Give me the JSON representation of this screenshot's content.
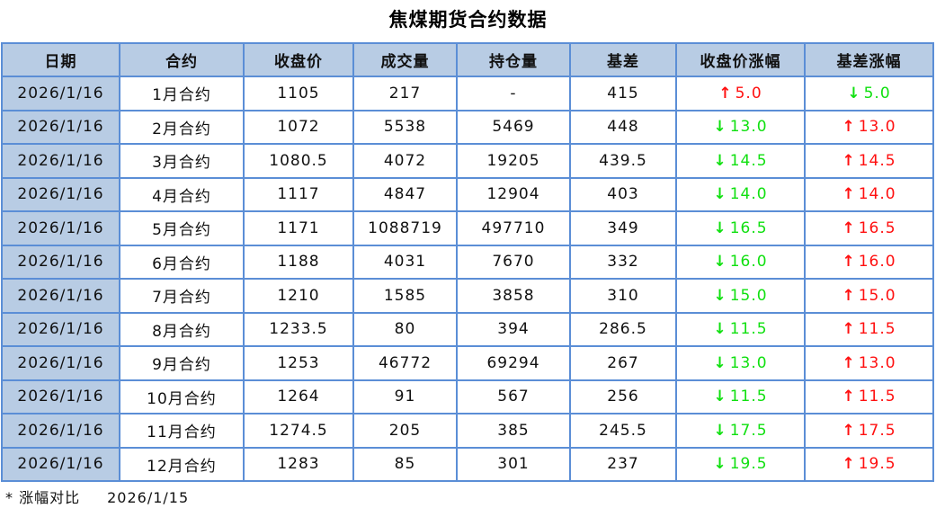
{
  "title": "焦煤期货合约数据",
  "colors": {
    "header_bg": "#b8cce4",
    "border": "#5b8ed6",
    "up": "#ff1010",
    "down": "#10e010"
  },
  "headers": [
    "日期",
    "合约",
    "收盘价",
    "成交量",
    "持仓量",
    "基差",
    "收盘价涨幅",
    "基差涨幅"
  ],
  "rows": [
    [
      "2026/1/16",
      "1月合约",
      "1105",
      "217",
      "-",
      "415",
      {
        "dir": "up",
        "v": "5.0"
      },
      {
        "dir": "down",
        "v": "5.0"
      }
    ],
    [
      "2026/1/16",
      "2月合约",
      "1072",
      "5538",
      "5469",
      "448",
      {
        "dir": "down",
        "v": "13.0"
      },
      {
        "dir": "up",
        "v": "13.0"
      }
    ],
    [
      "2026/1/16",
      "3月合约",
      "1080.5",
      "4072",
      "19205",
      "439.5",
      {
        "dir": "down",
        "v": "14.5"
      },
      {
        "dir": "up",
        "v": "14.5"
      }
    ],
    [
      "2026/1/16",
      "4月合约",
      "1117",
      "4847",
      "12904",
      "403",
      {
        "dir": "down",
        "v": "14.0"
      },
      {
        "dir": "up",
        "v": "14.0"
      }
    ],
    [
      "2026/1/16",
      "5月合约",
      "1171",
      "1088719",
      "497710",
      "349",
      {
        "dir": "down",
        "v": "16.5"
      },
      {
        "dir": "up",
        "v": "16.5"
      }
    ],
    [
      "2026/1/16",
      "6月合约",
      "1188",
      "4031",
      "7670",
      "332",
      {
        "dir": "down",
        "v": "16.0"
      },
      {
        "dir": "up",
        "v": "16.0"
      }
    ],
    [
      "2026/1/16",
      "7月合约",
      "1210",
      "1585",
      "3858",
      "310",
      {
        "dir": "down",
        "v": "15.0"
      },
      {
        "dir": "up",
        "v": "15.0"
      }
    ],
    [
      "2026/1/16",
      "8月合约",
      "1233.5",
      "80",
      "394",
      "286.5",
      {
        "dir": "down",
        "v": "11.5"
      },
      {
        "dir": "up",
        "v": "11.5"
      }
    ],
    [
      "2026/1/16",
      "9月合约",
      "1253",
      "46772",
      "69294",
      "267",
      {
        "dir": "down",
        "v": "13.0"
      },
      {
        "dir": "up",
        "v": "13.0"
      }
    ],
    [
      "2026/1/16",
      "10月合约",
      "1264",
      "91",
      "567",
      "256",
      {
        "dir": "down",
        "v": "11.5"
      },
      {
        "dir": "up",
        "v": "11.5"
      }
    ],
    [
      "2026/1/16",
      "11月合约",
      "1274.5",
      "205",
      "385",
      "245.5",
      {
        "dir": "down",
        "v": "17.5"
      },
      {
        "dir": "up",
        "v": "17.5"
      }
    ],
    [
      "2026/1/16",
      "12月合约",
      "1283",
      "85",
      "301",
      "237",
      {
        "dir": "down",
        "v": "19.5"
      },
      {
        "dir": "up",
        "v": "19.5"
      }
    ]
  ],
  "footer": {
    "label": "* 涨幅对比",
    "date": "2026/1/15"
  }
}
